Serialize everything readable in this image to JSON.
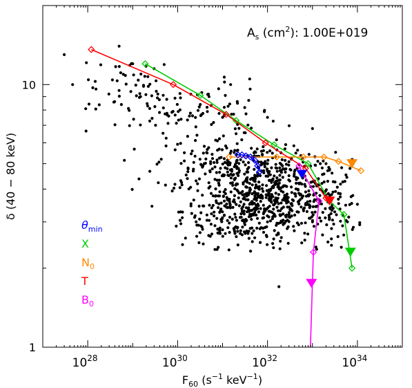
{
  "chart_data": {
    "type": "scatter",
    "title": "",
    "xlabel": {
      "main": "F",
      "sub": "60",
      "units_pre": " (s",
      "units_exp": "−1",
      "units_post": " keV",
      "units_exp2": "−1",
      "close": ")"
    },
    "ylabel": "δ (40 − 80 keV)",
    "xscale": "log",
    "yscale": "log",
    "xlim": [
      1e+27,
      1e+35
    ],
    "ylim": [
      1,
      20
    ],
    "x_ticks": [
      {
        "value": 1e+28,
        "base": "10",
        "exp": "28"
      },
      {
        "value": 1e+30,
        "base": "10",
        "exp": "30"
      },
      {
        "value": 1e+32,
        "base": "10",
        "exp": "32"
      },
      {
        "value": 1e+34,
        "base": "10",
        "exp": "34"
      }
    ],
    "y_ticks": [
      {
        "value": 1,
        "label": "1"
      },
      {
        "value": 10,
        "label": "10"
      }
    ],
    "annotation": {
      "pre": "A",
      "sub": "s",
      "post": " (cm",
      "sup": "2",
      "close": "): 1.00E+019"
    },
    "legend": [
      {
        "name": "θ",
        "sub": "min",
        "color": "#0000ff"
      },
      {
        "name": "X",
        "sub": "",
        "color": "#00cc00"
      },
      {
        "name": "N",
        "sub": "0",
        "color": "#ff8800"
      },
      {
        "name": "T",
        "sub": "",
        "color": "#ff0000"
      },
      {
        "name": "B",
        "sub": "0",
        "color": "#ff00ff"
      }
    ],
    "series": [
      {
        "legend_index": 0,
        "color": "#0000ff",
        "x": [
          2.2e+31,
          2.7e+31,
          3.3e+31,
          4.2e+31,
          5.2e+31,
          6e+31,
          6.6e+31
        ],
        "y": [
          5.4,
          5.4,
          5.35,
          5.3,
          5.15,
          4.9,
          4.65
        ],
        "arrow": {
          "x": 5.8e+32,
          "y": 4.55
        }
      },
      {
        "legend_index": 1,
        "color": "#00cc00",
        "x": [
          1.9e+29,
          3.2e+30,
          2e+31,
          1.4e+32,
          8e+32,
          2.4e+33,
          5e+33,
          7.6e+33
        ],
        "y": [
          12.0,
          9.1,
          7.3,
          5.9,
          5.0,
          3.6,
          3.2,
          2.0
        ],
        "arrow": {
          "x": 7e+33,
          "y": 2.3
        }
      },
      {
        "legend_index": 2,
        "color": "#ff8800",
        "x": [
          1.4e+31,
          1.6e+32,
          6.3e+32,
          1.8e+33,
          3.8e+33,
          1.2e+34
        ],
        "y": [
          5.3,
          5.3,
          5.3,
          5.3,
          5.1,
          4.7
        ],
        "arrow": {
          "x": 7.6e+33,
          "y": 5.0
        }
      },
      {
        "legend_index": 3,
        "color": "#ff0000",
        "x": [
          1.2e+28,
          8e+29,
          1.2e+31,
          9e+31,
          7e+32,
          2e+33
        ],
        "y": [
          13.6,
          10.0,
          7.7,
          6.0,
          4.8,
          3.7
        ],
        "arrow": {
          "x": 2.4e+33,
          "y": 3.6
        }
      },
      {
        "legend_index": 4,
        "color": "#ff00ff",
        "x": [
          5e+32,
          1.4e+33,
          1.05e+33
        ],
        "y": [
          4.9,
          3.6,
          2.3
        ],
        "tail_to_bottom_x": 9e+32,
        "arrow": {
          "x": 9.5e+32,
          "y": 1.75
        }
      }
    ],
    "scatter_cloud": {
      "color": "#000000",
      "n_points": 1100,
      "description_points": [
        [
          3e+27,
          13.0
        ],
        [
          5e+28,
          14.0
        ],
        [
          1e+29,
          12.0
        ],
        [
          3e+29,
          11.5
        ],
        [
          5e+28,
          9.5
        ],
        [
          1.5e+29,
          9.0
        ],
        [
          5e+30,
          9.0
        ],
        [
          1e+31,
          7.5
        ],
        [
          2e+31,
          6.5
        ],
        [
          1e+32,
          7.5
        ],
        [
          1e+33,
          6.8
        ],
        [
          5e+31,
          5.5
        ],
        [
          1e+32,
          5.0
        ],
        [
          3e+32,
          4.5
        ],
        [
          1e+31,
          4.5
        ],
        [
          3e+31,
          3.5
        ],
        [
          1e+32,
          3.8
        ],
        [
          5e+32,
          3.6
        ],
        [
          2e+33,
          3.8
        ],
        [
          3e+30,
          2.5
        ],
        [
          1e+31,
          2.8
        ],
        [
          1e+32,
          3.0
        ],
        [
          3e+32,
          3.2
        ],
        [
          1e+33,
          3.0
        ],
        [
          4e+31,
          3.5
        ],
        [
          6e+33,
          3.0
        ],
        [
          1.8e+32,
          1.7
        ],
        [
          1e+34,
          3.5
        ],
        [
          8e+31,
          5.8
        ],
        [
          2e+32,
          5.5
        ],
        [
          2e+33,
          5.0
        ],
        [
          8e+30,
          2.4
        ]
      ]
    }
  }
}
